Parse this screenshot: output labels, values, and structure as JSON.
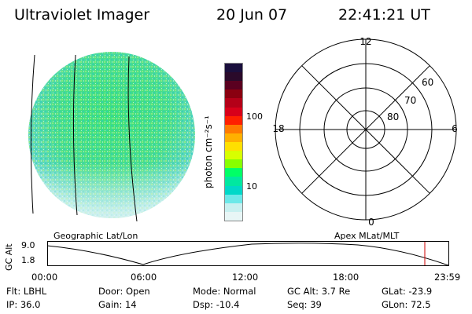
{
  "header": {
    "title": "Ultraviolet Imager",
    "date": "20 Jun 07",
    "time": "22:41:21 UT"
  },
  "colorbar": {
    "unit_label": "photon cm⁻²s⁻¹",
    "ticks": [
      "100",
      "10"
    ],
    "colors": [
      "#1a0f3d",
      "#2a0a2a",
      "#5a0020",
      "#8a0010",
      "#b40018",
      "#d8001a",
      "#ff2000",
      "#ff7a00",
      "#ffb000",
      "#ffe000",
      "#d8ff00",
      "#88ff00",
      "#00ff66",
      "#00e8a0",
      "#00d8c8",
      "#6ce8e8",
      "#c8f0f0",
      "#e8f6f6"
    ]
  },
  "polar_plot": {
    "mlt_labels": {
      "top": "12",
      "left": "18",
      "right": "6",
      "bottom": "0"
    },
    "lat_labels": [
      "60",
      "70",
      "80"
    ]
  },
  "timeline": {
    "left_label": "Geographic Lat/Lon",
    "right_label": "Apex MLat/MLT",
    "axis_title": "GC Alt",
    "y_ticks": [
      "9.0",
      "1.8"
    ],
    "x_ticks": [
      "00:00",
      "06:00",
      "12:00",
      "18:00",
      "23:59"
    ],
    "marker_color": "#cc0000"
  },
  "footer": {
    "row1": [
      {
        "label": "Flt:",
        "value": "LBHL"
      },
      {
        "label": "Door:",
        "value": "Open"
      },
      {
        "label": "Mode:",
        "value": "Normal"
      },
      {
        "label": "GC Alt:",
        "value": "3.7 Re"
      },
      {
        "label": "GLat:",
        "value": "-23.9"
      }
    ],
    "row2": [
      {
        "label": "IP:",
        "value": "36.0"
      },
      {
        "label": "Gain:",
        "value": "14"
      },
      {
        "label": "Dsp:",
        "value": "-10.4"
      },
      {
        "label": "Seq:",
        "value": "39"
      },
      {
        "label": "GLon:",
        "value": "72.5"
      }
    ]
  }
}
